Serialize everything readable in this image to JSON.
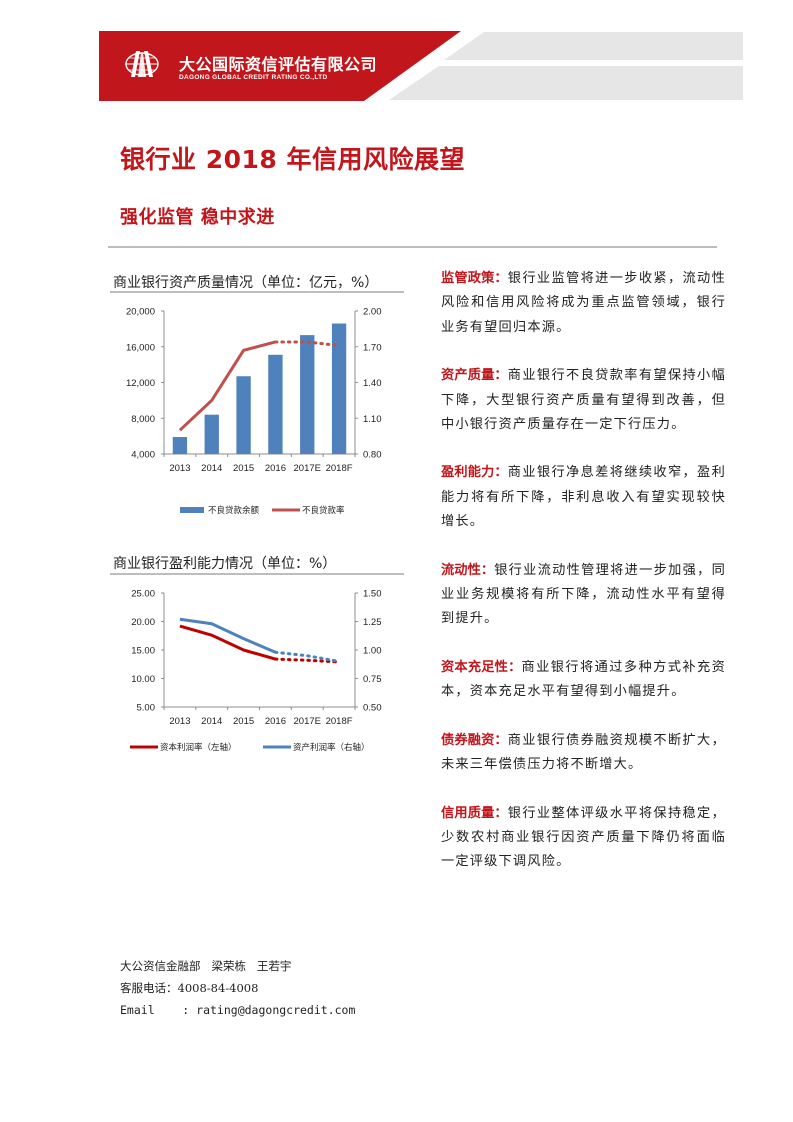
{
  "header": {
    "company_cn": "大公国际资信评估有限公司",
    "company_en": "DAGONG GLOBAL CREDIT RATING CO.,LTD",
    "logo_icon": "dagong-globe-logo",
    "brand_color": "#c0161c"
  },
  "title": {
    "main": "银行业 2018 年信用风险展望",
    "sub": "强化监管  稳中求进"
  },
  "charts": {
    "asset_quality": {
      "title": "商业银行资产质量情况（单位：亿元，%）",
      "legend": [
        "不良贷款余额",
        "不良贷款率"
      ]
    },
    "profitability": {
      "title": "商业银行盈利能力情况（单位：%）",
      "legend": [
        "资本利润率（左轴）",
        "资产利润率（右轴）"
      ]
    }
  },
  "chart_data": [
    {
      "type": "bar",
      "title": "商业银行资产质量情况（单位：亿元，%）",
      "categories": [
        "2013",
        "2014",
        "2015",
        "2016",
        "2017E",
        "2018F"
      ],
      "series": [
        {
          "name": "不良贷款余额",
          "type": "bar",
          "axis": "left",
          "color": "#4f81bd",
          "values": [
            5900,
            8400,
            12700,
            15100,
            17300,
            18600
          ]
        },
        {
          "name": "不良贷款率",
          "type": "line",
          "axis": "right",
          "color": "#c0504d",
          "values": [
            1.0,
            1.25,
            1.67,
            1.74,
            1.74,
            1.71
          ],
          "dotted_from_index": 3
        }
      ],
      "ylim_left": [
        4000,
        20000
      ],
      "yticks_left": [
        "4,000",
        "8,000",
        "12,000",
        "16,000",
        "20,000"
      ],
      "ylim_right": [
        0.8,
        2.0
      ],
      "yticks_right": [
        "0.80",
        "1.10",
        "1.40",
        "1.70",
        "2.00"
      ],
      "xlabel": "",
      "ylabel": "",
      "grid": false,
      "legend_position": "bottom"
    },
    {
      "type": "line",
      "title": "商业银行盈利能力情况（单位：%）",
      "categories": [
        "2013",
        "2014",
        "2015",
        "2016",
        "2017E",
        "2018F"
      ],
      "series": [
        {
          "name": "资本利润率（左轴）",
          "axis": "left",
          "color": "#c00000",
          "values": [
            19.2,
            17.6,
            15.0,
            13.4,
            13.2,
            12.9
          ],
          "dotted_from_index": 3
        },
        {
          "name": "资产利润率（右轴）",
          "axis": "right",
          "color": "#4f81bd",
          "values": [
            1.27,
            1.23,
            1.1,
            0.98,
            0.95,
            0.9
          ],
          "dotted_from_index": 3
        }
      ],
      "ylim_left": [
        5,
        25
      ],
      "yticks_left": [
        "5.00",
        "10.00",
        "15.00",
        "20.00",
        "25.00"
      ],
      "ylim_right": [
        0.5,
        1.5
      ],
      "yticks_right": [
        "0.50",
        "0.75",
        "1.00",
        "1.25",
        "1.50"
      ],
      "xlabel": "",
      "ylabel": "",
      "grid": false,
      "legend_position": "bottom"
    }
  ],
  "sections": [
    {
      "keyword": "监管政策：",
      "text": "银行业监管将进一步收紧，流动性风险和信用风险将成为重点监管领域，银行业务有望回归本源。"
    },
    {
      "keyword": "资产质量：",
      "text": "商业银行不良贷款率有望保持小幅下降，大型银行资产质量有望得到改善，但中小银行资产质量存在一定下行压力。"
    },
    {
      "keyword": "盈利能力：",
      "text": "商业银行净息差将继续收窄，盈利能力将有所下降，非利息收入有望实现较快增长。"
    },
    {
      "keyword": "流动性：",
      "text": "银行业流动性管理将进一步加强，同业业务规模将有所下降，流动性水平有望得到提升。"
    },
    {
      "keyword": "资本充足性：",
      "text": "商业银行将通过多种方式补充资本，资本充足水平有望得到小幅提升。"
    },
    {
      "keyword": "债券融资：",
      "text": "商业银行债券融资规模不断扩大，未来三年偿债压力将不断增大。"
    },
    {
      "keyword": "信用质量：",
      "text": "银行业整体评级水平将保持稳定，少数农村商业银行因资产质量下降仍将面临一定评级下调风险。"
    }
  ],
  "footer": {
    "authors": "大公资信金融部   梁荣栋   王若宇",
    "phone": "客服电话：4008-84-4008",
    "email": "Email    : rating@dagongcredit.com"
  }
}
